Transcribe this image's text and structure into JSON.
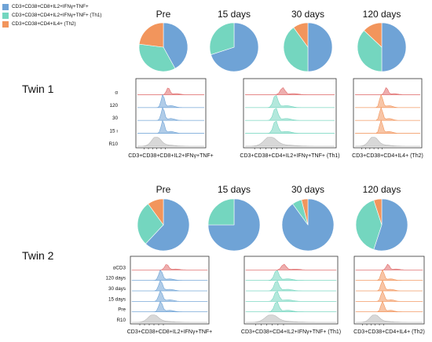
{
  "legend": [
    {
      "label": "CD3+CD38+CD8+IL2+IFNγ+TNF+",
      "color": "#6fa3d6"
    },
    {
      "label": "CD3+CD38+CD4+IL2+IFNγ+TNF+ (Th1)",
      "color": "#74d6bf"
    },
    {
      "label": "CD3+CD38+CD4+IL4+ (Th2)",
      "color": "#f2955c"
    }
  ],
  "twins": [
    {
      "label": "Twin 1",
      "timepoints": [
        "Pre",
        "15 days",
        "30 days",
        "120 days"
      ],
      "histogram_rows": [
        "α",
        "120",
        "30",
        "15 ı",
        "R10"
      ],
      "histogram_xlabels": [
        "CD3+CD38+CD8+IL2+IFNγ+TNF+",
        "CD3+CD38+CD4+IL2+IFNγ+TNF+ (Th1)",
        "CD3+CD38+CD4+IL4+ (Th2)"
      ]
    },
    {
      "label": "Twin 2",
      "timepoints": [
        "Pre",
        "15 days",
        "30 days",
        "120 days"
      ],
      "histogram_rows": [
        "αCD3",
        "120 days",
        "30 days",
        "15 days",
        "Pre",
        "R10"
      ],
      "histogram_xlabels": [
        "CD3+CD38+CD8+IL2+IFNγ+TNF+",
        "CD3+CD38+CD4+IL2+IFNγ+TNF+ (Th1)",
        "CD3+CD38+CD4+IL4+ (Th2)"
      ]
    }
  ],
  "chart_data": [
    {
      "type": "pie",
      "twin": "Twin 1",
      "categories": [
        "Pre",
        "15 days",
        "30 days",
        "120 days"
      ],
      "series": [
        {
          "name": "CD3+CD38+CD8+IL2+IFNγ+TNF+",
          "values": [
            0.42,
            0.7,
            0.5,
            0.5
          ]
        },
        {
          "name": "CD3+CD38+CD4+IL2+IFNγ+TNF+ (Th1)",
          "values": [
            0.35,
            0.3,
            0.4,
            0.37
          ]
        },
        {
          "name": "CD3+CD38+CD4+IL4+ (Th2)",
          "values": [
            0.23,
            0.0,
            0.1,
            0.13
          ]
        }
      ]
    },
    {
      "type": "pie",
      "twin": "Twin 2",
      "categories": [
        "Pre",
        "15 days",
        "30 days",
        "120 days"
      ],
      "series": [
        {
          "name": "CD3+CD38+CD8+IL2+IFNγ+TNF+",
          "values": [
            0.62,
            0.75,
            0.9,
            0.55
          ]
        },
        {
          "name": "CD3+CD38+CD4+IL2+IFNγ+TNF+ (Th1)",
          "values": [
            0.28,
            0.25,
            0.06,
            0.4
          ]
        },
        {
          "name": "CD3+CD38+CD4+IL4+ (Th2)",
          "values": [
            0.1,
            0.0,
            0.04,
            0.05
          ]
        }
      ]
    },
    {
      "type": "area",
      "twin": "Twin 1",
      "panels": [
        {
          "xlabel": "CD3+CD38+CD8+IL2+IFNγ+TNF+",
          "rows": [
            "α",
            "120",
            "30",
            "15 ı",
            "R10"
          ]
        },
        {
          "xlabel": "CD3+CD38+CD4+IL2+IFNγ+TNF+ (Th1)",
          "rows": [
            "α",
            "120",
            "30",
            "15 ı",
            "R10"
          ]
        },
        {
          "xlabel": "CD3+CD38+CD4+IL4+ (Th2)",
          "rows": [
            "α",
            "120",
            "30",
            "15 ı",
            "R10"
          ]
        }
      ]
    },
    {
      "type": "area",
      "twin": "Twin 2",
      "panels": [
        {
          "xlabel": "CD3+CD38+CD8+IL2+IFNγ+TNF+",
          "rows": [
            "αCD3",
            "120 days",
            "30 days",
            "15 days",
            "Pre",
            "R10"
          ]
        },
        {
          "xlabel": "CD3+CD38+CD4+IL2+IFNγ+TNF+ (Th1)",
          "rows": [
            "αCD3",
            "120 days",
            "30 days",
            "15 days",
            "Pre",
            "R10"
          ]
        },
        {
          "xlabel": "CD3+CD38+CD4+IL4+ (Th2)",
          "rows": [
            "αCD3",
            "120 days",
            "30 days",
            "15 days",
            "Pre",
            "R10"
          ]
        }
      ]
    }
  ],
  "colors": {
    "cd8": "#6fa3d6",
    "th1": "#74d6bf",
    "th2": "#f2955c",
    "stim": "#e06c6c",
    "r10": "#b8b8b8"
  }
}
